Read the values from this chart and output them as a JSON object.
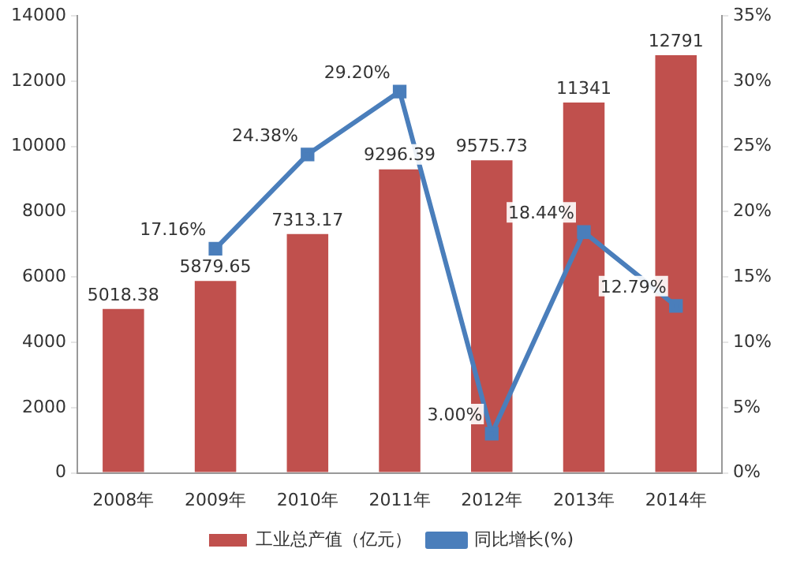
{
  "chart_data": {
    "type": "bar",
    "categories": [
      "2008年",
      "2009年",
      "2010年",
      "2011年",
      "2012年",
      "2013年",
      "2014年"
    ],
    "series": [
      {
        "name": "工业总产值（亿元）",
        "color": "#c0504d",
        "values": [
          5018.38,
          5879.65,
          7313.17,
          9296.39,
          9575.73,
          11341,
          12791
        ],
        "value_labels": [
          "5018.38",
          "5879.65",
          "7313.17",
          "9296.39",
          "9575.73",
          "11341",
          "12791"
        ]
      },
      {
        "name": "同比增长(%)",
        "type": "line",
        "axis": "y2",
        "color": "#4a7ebb",
        "values": [
          null,
          17.16,
          24.38,
          29.2,
          3.0,
          18.44,
          12.79
        ],
        "value_labels": [
          null,
          "17.16%",
          "24.38%",
          "29.20%",
          "3.00%",
          "18.44%",
          "12.79%"
        ]
      }
    ],
    "ylim": [
      0,
      14000
    ],
    "yticks": [
      0,
      2000,
      4000,
      6000,
      8000,
      10000,
      12000,
      14000
    ],
    "y2lim": [
      0,
      35
    ],
    "y2ticks": [
      {
        "value": 0,
        "label": "0%"
      },
      {
        "value": 5,
        "label": "5%"
      },
      {
        "value": 10,
        "label": "10%"
      },
      {
        "value": 15,
        "label": "15%"
      },
      {
        "value": 20,
        "label": "20%"
      },
      {
        "value": 25,
        "label": "25%"
      },
      {
        "value": 30,
        "label": "30%"
      },
      {
        "value": 35,
        "label": "35%"
      }
    ],
    "grid": false,
    "legend": "bottom",
    "marker": "square"
  }
}
